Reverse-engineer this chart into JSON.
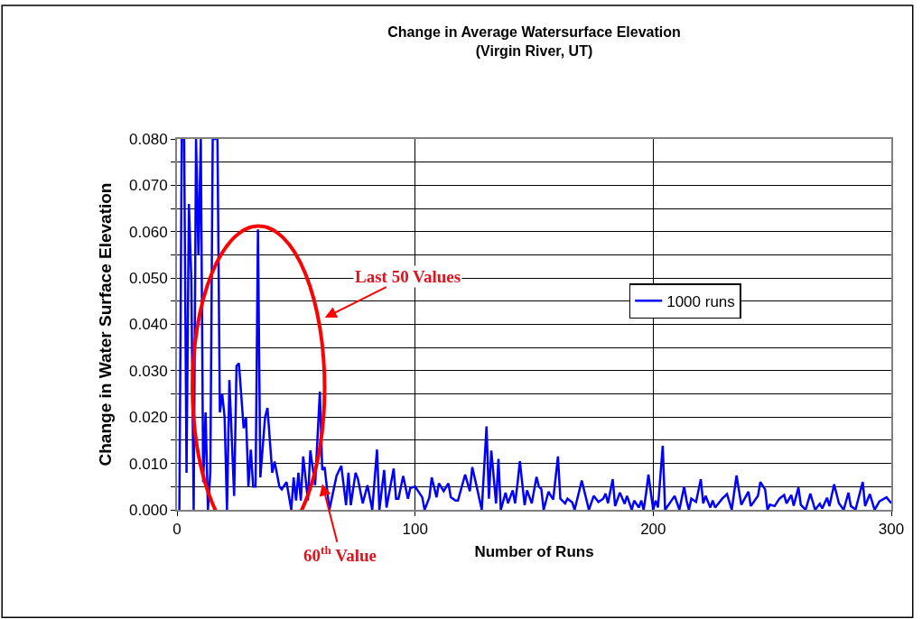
{
  "chart_data": {
    "type": "line",
    "title": "Change in Average Watersurface Elevation\n(Virgin River, UT)",
    "xlabel": "Number of Runs",
    "ylabel": "Change in Water Surface Elevation",
    "xlim": [
      0,
      300
    ],
    "xticks": [
      0,
      100,
      200,
      300
    ],
    "ylim": [
      0,
      0.08
    ],
    "yticks": [
      {
        "value": 0,
        "label": "0.000"
      },
      {
        "value": 0.005,
        "label": null
      },
      {
        "value": 0.01,
        "label": "0.010"
      },
      {
        "value": 0.015,
        "label": null
      },
      {
        "value": 0.02,
        "label": "0.020"
      },
      {
        "value": 0.025,
        "label": null
      },
      {
        "value": 0.03,
        "label": "0.030"
      },
      {
        "value": 0.035,
        "label": null
      },
      {
        "value": 0.04,
        "label": "0.040"
      },
      {
        "value": 0.045,
        "label": null
      },
      {
        "value": 0.05,
        "label": "0.050"
      },
      {
        "value": 0.055,
        "label": null
      },
      {
        "value": 0.06,
        "label": "0.060"
      },
      {
        "value": 0.065,
        "label": null
      },
      {
        "value": 0.07,
        "label": "0.070"
      },
      {
        "value": 0.075,
        "label": null
      },
      {
        "value": 0.08,
        "label": "0.080"
      }
    ],
    "grid": true,
    "legend": "right",
    "marker": "none",
    "line_style": "solid",
    "series": [
      {
        "name": "1000 runs",
        "color": "#0000ff",
        "x": [
          1,
          2,
          3,
          4,
          5,
          6,
          7,
          8,
          9,
          10,
          11,
          12,
          13,
          14,
          15,
          17,
          18,
          19,
          20,
          21,
          22,
          24,
          25,
          26,
          28,
          29,
          30,
          31,
          32,
          33,
          34,
          35,
          37,
          38,
          40,
          41,
          43,
          44,
          46,
          48,
          49,
          50,
          51,
          52,
          53,
          55,
          56,
          58,
          60,
          61,
          62,
          64,
          67,
          69,
          71,
          72,
          73,
          75,
          76,
          78,
          80,
          82,
          84,
          85,
          87,
          88,
          91,
          92,
          93,
          95,
          97,
          98,
          100,
          103,
          104,
          106,
          107,
          109,
          110,
          112,
          114,
          115,
          117,
          118,
          121,
          123,
          124,
          126,
          128,
          130,
          131,
          132,
          134,
          135,
          136,
          138,
          139,
          141,
          142,
          143,
          144,
          146,
          147,
          149,
          151,
          152,
          153,
          154,
          156,
          158,
          160,
          161,
          163,
          164,
          166,
          167,
          170,
          173,
          175,
          177,
          179,
          180,
          181,
          183,
          184,
          186,
          188,
          189,
          191,
          192,
          194,
          195,
          196,
          197,
          198,
          200,
          201,
          202,
          204,
          205,
          209,
          211,
          213,
          214,
          215,
          216,
          218,
          220,
          221,
          222,
          224,
          225,
          226,
          229,
          231,
          233,
          235,
          237,
          240,
          241,
          244,
          245,
          247,
          248,
          249,
          251,
          253,
          255,
          256,
          258,
          259,
          261,
          262,
          264,
          266,
          268,
          270,
          271,
          273,
          274,
          276,
          278,
          280,
          282,
          283,
          285,
          288,
          289,
          291,
          293,
          295,
          297,
          298,
          300
        ],
        "values": [
          0,
          0.08,
          0.08,
          0.008,
          0.066,
          0.05,
          0,
          0.08,
          0.055,
          0.08,
          0.006,
          0.021,
          0,
          0.008,
          0.08,
          0.08,
          0.021,
          0.025,
          0.02,
          0,
          0.028,
          0.003,
          0.031,
          0.0316,
          0.0176,
          0.02,
          0.005,
          0.013,
          0.005,
          0.005,
          0.0605,
          0.007,
          0.02,
          0.022,
          0.008,
          0.0104,
          0.005,
          0.0044,
          0.006,
          0,
          0.007,
          0.002,
          0.008,
          0.002,
          0.0115,
          0.002,
          0.0128,
          0.0053,
          0.0255,
          0.0086,
          0.0092,
          0,
          0.0073,
          0.0095,
          0.001,
          0.008,
          0.001,
          0.008,
          0.0066,
          0.0014,
          0.0053,
          0,
          0.013,
          0,
          0.0086,
          0.0005,
          0.0089,
          0.0024,
          0.0024,
          0.0073,
          0.0024,
          0.0047,
          0.005,
          0.0027,
          0,
          0.0027,
          0.007,
          0.0027,
          0.0057,
          0.004,
          0.0057,
          0.0027,
          0.002,
          0.002,
          0.0076,
          0.004,
          0.0092,
          0.0047,
          0,
          0.018,
          0.0024,
          0.0128,
          0.0014,
          0.011,
          0,
          0.0037,
          0.0014,
          0.0042,
          0.0014,
          0.0056,
          0.0105,
          0.001,
          0.0042,
          0.0014,
          0.0071,
          0.005,
          0.0045,
          0,
          0.0039,
          0.0022,
          0.0115,
          0.0024,
          0.0014,
          0.0024,
          0.0016,
          0,
          0.0063,
          0,
          0.003,
          0.0017,
          0.0024,
          0.0035,
          0.0014,
          0.0066,
          0.0008,
          0.0037,
          0.0013,
          0.003,
          0,
          0.002,
          0.0005,
          0.002,
          0,
          0.0035,
          0.0076,
          0,
          0.002,
          0.0005,
          0.0138,
          0,
          0.003,
          0,
          0.005,
          0.002,
          0,
          0.0024,
          0.0017,
          0.0066,
          0.0014,
          0.003,
          0.0005,
          0.002,
          0.0005,
          0.0024,
          0.0034,
          0,
          0.0074,
          0.0011,
          0.0039,
          0.0008,
          0.003,
          0.006,
          0.0044,
          0,
          0.0011,
          0.0008,
          0.0024,
          0.0032,
          0.0014,
          0.0032,
          0.0009,
          0.0048,
          0.0011,
          0,
          0.0035,
          0,
          0.0013,
          0.0003,
          0.0026,
          0.0008,
          0.0055,
          0.0014,
          0,
          0.0037,
          0.0008,
          0.0001,
          0.006,
          0.0008,
          0.0034,
          0,
          0.0018,
          0.0024,
          0.0027,
          0.0014
        ]
      }
    ],
    "annotations": [
      "Last 50 Values",
      {
        "text": "60$^{th}$ Value",
        "x": 61,
        "y": 0.0056
      }
    ]
  }
}
